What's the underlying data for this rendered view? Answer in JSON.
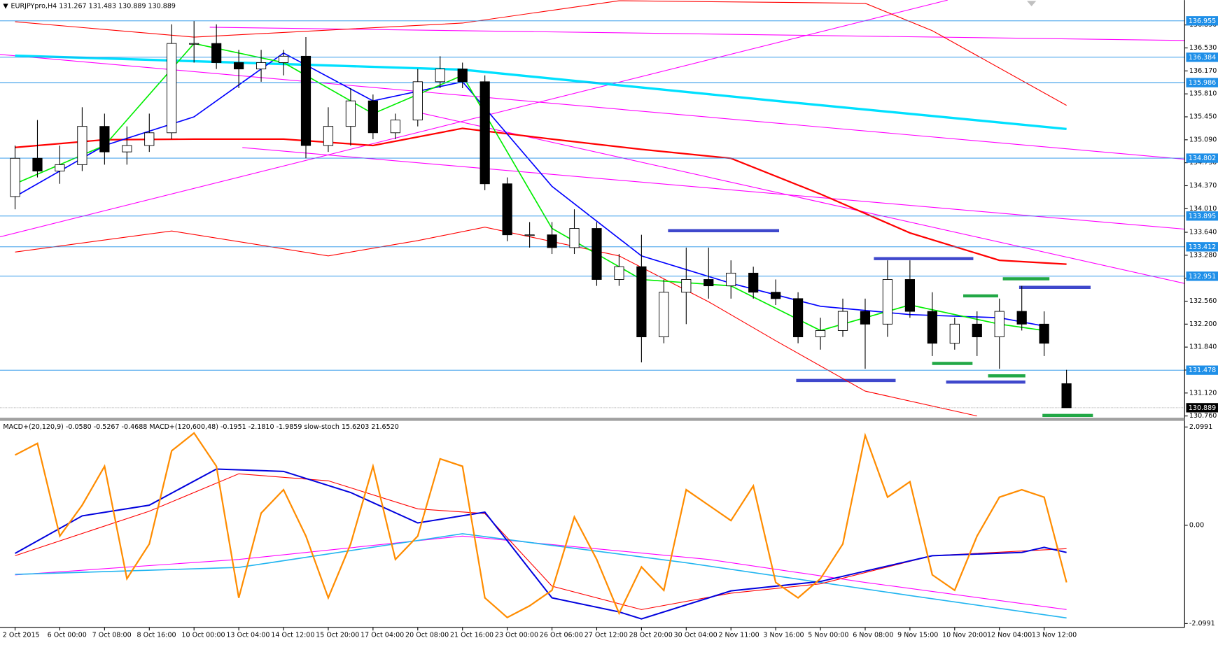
{
  "chart_data": [
    {
      "type": "candlestick",
      "title": "EURJPYpro,H4  131.267 131.483 130.889 130.889",
      "categories": [
        "2 Oct 2015",
        null,
        "6 Oct 00:00",
        null,
        "7 Oct 08:00",
        null,
        "8 Oct 16:00",
        null,
        "10 Oct 00:00",
        null,
        "13 Oct 04:00",
        null,
        "14 Oct 12:00",
        null,
        "15 Oct 20:00",
        null,
        "17 Oct 04:00",
        null,
        "20 Oct 08:00",
        null,
        "21 Oct 16:00",
        null,
        "23 Oct 00:00",
        null,
        "26 Oct 06:00",
        null,
        "27 Oct 12:00",
        null,
        "28 Oct 20:00",
        null,
        "30 Oct 04:00",
        null,
        "2 Nov 11:00",
        null,
        "3 Nov 16:00",
        null,
        "5 Nov 00:00",
        null,
        "6 Nov 08:00",
        null,
        "9 Nov 15:00",
        null,
        "10 Nov 20:00",
        null,
        "12 Nov 04:00",
        null,
        "13 Nov 12:00",
        null
      ],
      "open": [
        134.2,
        134.8,
        134.6,
        134.7,
        135.3,
        134.9,
        135.0,
        135.2,
        136.6,
        136.6,
        136.3,
        136.2,
        136.3,
        136.4,
        135.0,
        135.3,
        135.7,
        135.2,
        135.4,
        136.0,
        136.2,
        136.0,
        134.4,
        133.6,
        133.6,
        133.4,
        133.7,
        132.9,
        133.1,
        132.0,
        132.7,
        132.9,
        132.8,
        133.0,
        132.7,
        132.6,
        132.0,
        132.1,
        132.4,
        132.2,
        132.9,
        132.4,
        131.9,
        132.2,
        132.0,
        132.4,
        132.2,
        131.267
      ],
      "high": [
        135.0,
        135.4,
        135.0,
        135.6,
        135.5,
        135.3,
        135.5,
        136.9,
        136.95,
        136.9,
        136.5,
        136.5,
        136.5,
        136.7,
        135.6,
        135.9,
        135.8,
        135.5,
        136.2,
        136.4,
        136.3,
        136.1,
        134.5,
        133.8,
        133.8,
        134.0,
        133.8,
        133.3,
        133.6,
        132.9,
        133.4,
        133.4,
        133.2,
        133.1,
        132.9,
        132.7,
        132.3,
        132.6,
        132.6,
        133.2,
        133.2,
        132.7,
        132.3,
        132.4,
        132.6,
        132.8,
        132.4,
        131.483
      ],
      "low": [
        134.0,
        134.5,
        134.4,
        134.6,
        134.7,
        134.7,
        134.9,
        135.1,
        136.3,
        136.2,
        135.9,
        136.0,
        136.1,
        134.8,
        134.9,
        135.0,
        135.1,
        135.1,
        135.3,
        135.9,
        135.9,
        134.3,
        133.5,
        133.4,
        133.3,
        133.3,
        132.8,
        132.8,
        131.6,
        131.9,
        132.2,
        132.6,
        132.6,
        132.6,
        132.5,
        131.9,
        131.8,
        132.0,
        131.5,
        132.0,
        132.3,
        131.7,
        131.8,
        131.7,
        131.5,
        132.1,
        131.7,
        130.889
      ],
      "close": [
        134.8,
        134.6,
        134.7,
        135.3,
        134.9,
        135.0,
        135.2,
        136.6,
        136.6,
        136.3,
        136.2,
        136.3,
        136.4,
        135.0,
        135.3,
        135.7,
        135.2,
        135.4,
        136.0,
        136.2,
        136.0,
        134.4,
        133.6,
        133.6,
        133.4,
        133.7,
        132.9,
        133.1,
        132.0,
        132.7,
        132.9,
        132.8,
        133.0,
        132.7,
        132.6,
        132.0,
        132.1,
        132.4,
        132.2,
        132.9,
        132.4,
        131.9,
        132.2,
        132.0,
        132.4,
        132.2,
        131.9,
        130.889
      ],
      "up_color": "#ffffff",
      "down_color": "#000000",
      "ylim": [
        130.72,
        137.28
      ],
      "yticks": [
        {
          "value": 136.89,
          "label": "136.890"
        },
        {
          "value": 136.53,
          "label": "136.530"
        },
        {
          "value": 136.17,
          "label": "136.170"
        },
        {
          "value": 135.81,
          "label": "135.810"
        },
        {
          "value": 135.45,
          "label": "135.450"
        },
        {
          "value": 135.09,
          "label": "135.090"
        },
        {
          "value": 134.73,
          "label": "134.730"
        },
        {
          "value": 134.37,
          "label": "134.370"
        },
        {
          "value": 134.01,
          "label": "134.010"
        },
        {
          "value": 133.64,
          "label": "133.640"
        },
        {
          "value": 133.28,
          "label": "133.280"
        },
        {
          "value": 132.92,
          "label": "132.920"
        },
        {
          "value": 132.56,
          "label": "132.560"
        },
        {
          "value": 132.2,
          "label": "132.200"
        },
        {
          "value": 131.84,
          "label": "131.840"
        },
        {
          "value": 131.48,
          "label": "131.480"
        },
        {
          "value": 131.12,
          "label": "131.120"
        },
        {
          "value": 130.76,
          "label": "130.760"
        }
      ],
      "levels": [
        136.955,
        136.384,
        135.986,
        134.802,
        133.895,
        133.412,
        132.951,
        131.478
      ],
      "level_color": "#1e8fe8",
      "last_price": 130.889,
      "overlays": [
        {
          "color": "#00e0ff",
          "width": 3,
          "x": [
            0,
            20,
            34,
            47
          ],
          "values": [
            136.41,
            136.19,
            135.7,
            135.26
          ]
        },
        {
          "color": "#ff0000",
          "width": 1,
          "x": [
            0,
            8,
            20,
            27,
            38,
            41,
            47
          ],
          "values": [
            136.94,
            136.7,
            136.92,
            137.27,
            137.23,
            136.8,
            135.63
          ]
        },
        {
          "color": "#ff0000",
          "width": 1,
          "x": [
            0,
            7,
            14,
            18,
            21,
            27,
            31,
            34,
            38,
            43
          ],
          "values": [
            133.33,
            133.66,
            133.27,
            133.51,
            133.72,
            133.27,
            132.55,
            131.94,
            131.15,
            130.76
          ]
        },
        {
          "color": "#ff0000",
          "width": 2,
          "x": [
            0,
            4,
            8,
            12,
            16,
            20,
            24,
            28,
            32,
            36,
            40,
            44,
            47
          ],
          "values": [
            134.97,
            135.09,
            135.1,
            135.1,
            135.0,
            135.27,
            135.1,
            134.94,
            134.8,
            134.24,
            133.63,
            133.2,
            133.14
          ]
        },
        {
          "color": "#0000ff",
          "width": 1.5,
          "x": [
            0,
            4,
            8,
            12,
            16,
            20,
            24,
            28,
            32,
            36,
            40,
            44,
            46
          ],
          "values": [
            134.2,
            135.0,
            135.45,
            136.45,
            135.7,
            136.0,
            134.36,
            133.27,
            132.84,
            132.48,
            132.35,
            132.3,
            132.17
          ]
        },
        {
          "color": "#00ee00",
          "width": 1.5,
          "x": [
            0,
            4,
            8,
            12,
            16,
            20,
            24,
            28,
            32,
            36,
            40,
            44,
            46
          ],
          "values": [
            134.4,
            135.0,
            136.6,
            136.3,
            135.5,
            136.1,
            133.7,
            132.9,
            132.8,
            132.1,
            132.5,
            132.2,
            132.1
          ]
        }
      ]
    },
    {
      "type": "line",
      "title": "MACD+(20,120,9) -0.0580 -0.5267 -0.4688  MACD+(120,600,48) -0.1951 -2.1810 -1.9859  slow-stoch 15.6203 21.6520",
      "ylim": [
        -2.18,
        2.23
      ],
      "yticks": [
        2.0991,
        {
          "value": 0,
          "label": "0.00"
        },
        -2.0991
      ],
      "series": [
        {
          "color": "#ff00ff",
          "width": 1,
          "x": [
            0,
            10,
            20,
            31,
            38,
            47
          ],
          "values": [
            -1.06,
            -0.73,
            -0.23,
            -0.73,
            -1.22,
            -1.8
          ]
        },
        {
          "color": "#22b5f0",
          "width": 1.5,
          "x": [
            0,
            10,
            20,
            30,
            40,
            47
          ],
          "values": [
            -1.05,
            -0.9,
            -0.18,
            -0.8,
            -1.5,
            -1.98
          ]
        },
        {
          "color": "#ff0000",
          "width": 1,
          "x": [
            0,
            6,
            10,
            14,
            18,
            21,
            24,
            28,
            32,
            36,
            41,
            47
          ],
          "values": [
            -0.65,
            0.3,
            1.1,
            0.95,
            0.35,
            0.25,
            -1.3,
            -1.8,
            -1.45,
            -1.25,
            -0.65,
            -0.5
          ]
        },
        {
          "color": "#0000dd",
          "width": 1.8,
          "x": [
            0,
            3,
            6,
            9,
            12,
            15,
            18,
            21,
            24,
            27,
            28,
            32,
            36,
            41,
            45,
            46,
            47
          ],
          "values": [
            -0.6,
            0.2,
            0.43,
            1.2,
            1.15,
            0.7,
            0.05,
            0.28,
            -1.55,
            -1.85,
            -2.0,
            -1.4,
            -1.2,
            -0.65,
            -0.58,
            -0.47,
            -0.58
          ]
        },
        {
          "color": "#ff8c00",
          "width": 2,
          "x": [
            0,
            1,
            2,
            3,
            4,
            5,
            6,
            7,
            8,
            9,
            10,
            11,
            12,
            13,
            14,
            15,
            16,
            17,
            18,
            19,
            20,
            21,
            22,
            23,
            24,
            25,
            26,
            27,
            28,
            29,
            30,
            31,
            32,
            33,
            34,
            35,
            36,
            37,
            38,
            39,
            40,
            41,
            42,
            43,
            44,
            45,
            46,
            47
          ],
          "values": [
            1.5,
            1.75,
            -0.23,
            0.43,
            1.26,
            -1.14,
            -0.4,
            1.59,
            1.97,
            1.26,
            -1.55,
            0.26,
            0.76,
            -0.23,
            -1.55,
            -0.4,
            1.26,
            -0.73,
            -0.23,
            1.42,
            1.26,
            -1.55,
            -1.97,
            -1.72,
            -1.39,
            0.18,
            -0.73,
            -1.88,
            -0.89,
            -1.39,
            0.76,
            0.43,
            0.1,
            0.84,
            -1.22,
            -1.55,
            -1.14,
            -0.4,
            1.92,
            0.6,
            0.93,
            -1.06,
            -1.39,
            -0.23,
            0.6,
            0.76,
            0.6,
            -1.22
          ]
        }
      ]
    }
  ]
}
